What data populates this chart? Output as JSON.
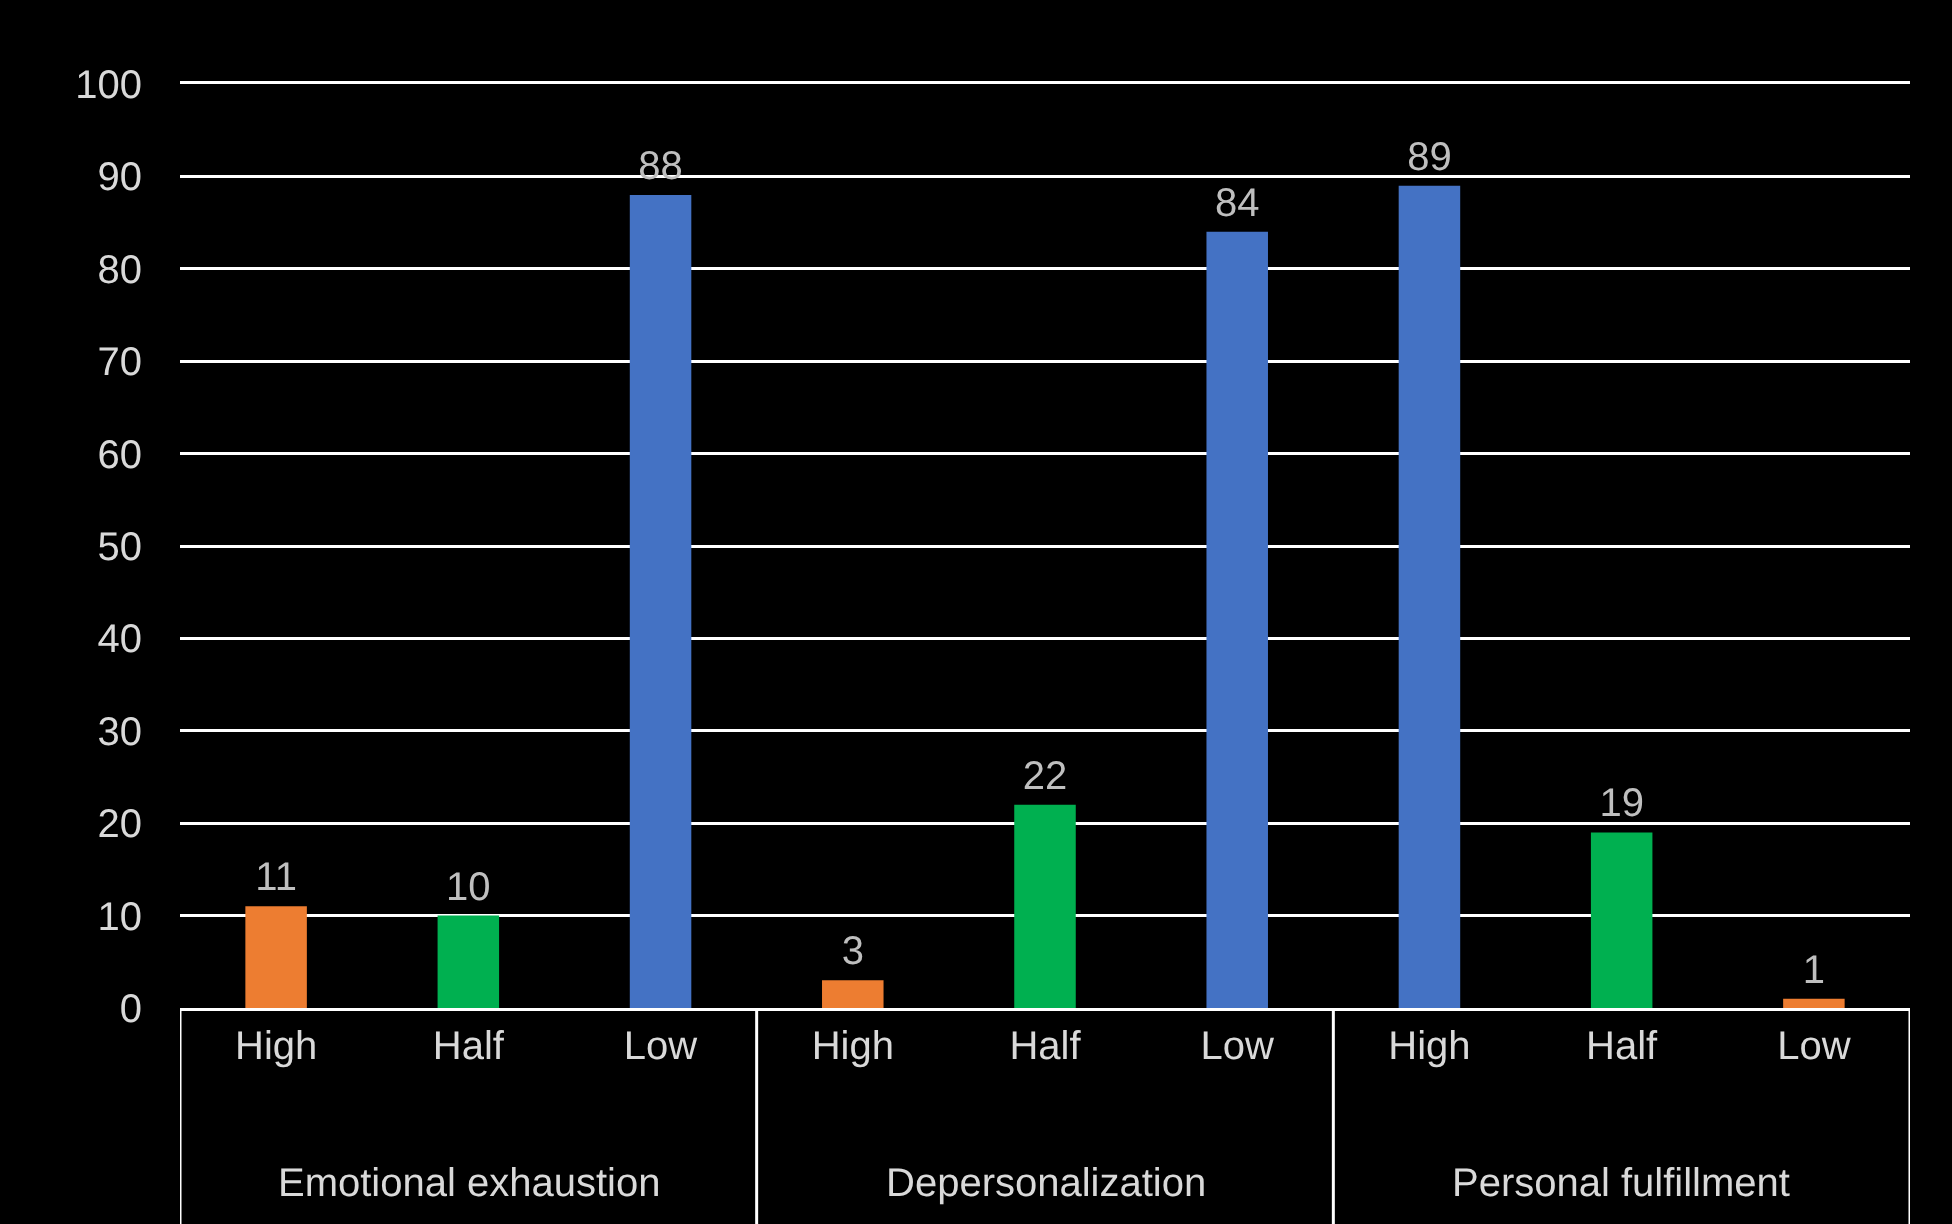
{
  "chart_data": {
    "type": "bar",
    "categories": [
      "High",
      "Half",
      "Low",
      "High",
      "Half",
      "Low",
      "High",
      "Half",
      "Low"
    ],
    "values": [
      11,
      10,
      88,
      3,
      22,
      84,
      89,
      19,
      1
    ],
    "colors": [
      "#ed7d31",
      "#00b050",
      "#4472c4",
      "#ed7d31",
      "#00b050",
      "#4472c4",
      "#4472c4",
      "#00b050",
      "#ed7d31"
    ],
    "ylim": [
      0,
      100
    ],
    "yticks": [
      0,
      10,
      20,
      30,
      40,
      50,
      60,
      70,
      80,
      90,
      100
    ],
    "grid": "y",
    "data_labels": true,
    "annotations": [
      "Emotional exhaustion",
      "Depersonalization",
      "Personal fulfillment"
    ]
  }
}
